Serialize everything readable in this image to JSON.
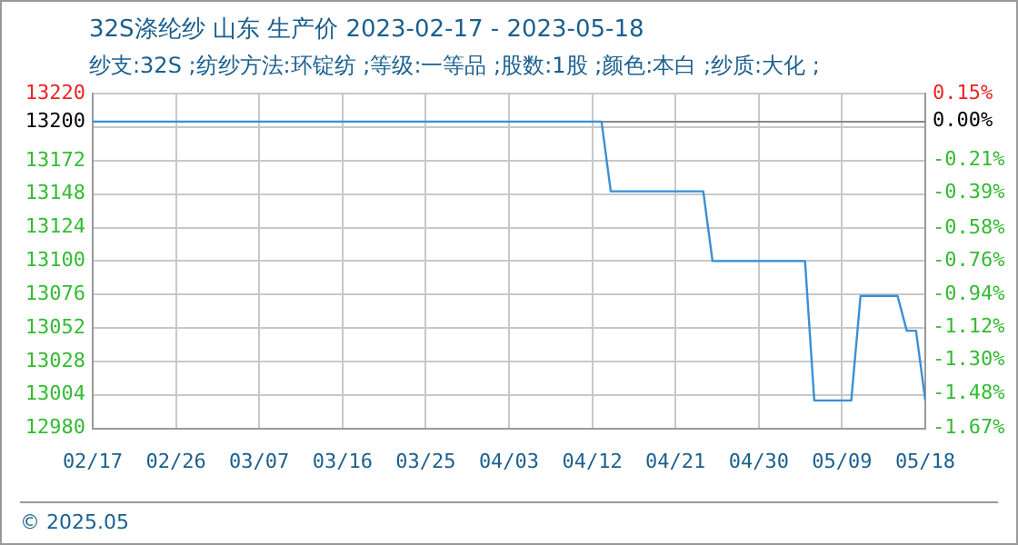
{
  "chart_data": {
    "type": "line",
    "title": "32S涤纶纱 山东 生产价 2023-02-17 - 2023-05-18",
    "subtitle": "纱支:32S ;纺纱方法:环锭纺 ;等级:一等品 ;股数:1股 ;颜色:本白 ;纱质:大化 ;",
    "x": [
      "2023-02-17",
      "2023-04-13",
      "2023-04-14",
      "2023-04-24",
      "2023-04-25",
      "2023-05-05",
      "2023-05-06",
      "2023-05-10",
      "2023-05-11",
      "2023-05-15",
      "2023-05-16",
      "2023-05-17",
      "2023-05-18"
    ],
    "series": [
      {
        "color": "#3a8fd4",
        "values": [
          13200,
          13200,
          13150,
          13150,
          13100,
          13100,
          13000,
          13000,
          13075,
          13075,
          13050,
          13050,
          13000
        ]
      }
    ],
    "xlim": [
      "2023-02-17",
      "2023-05-18"
    ],
    "xticks": [
      {
        "value": "2023-02-17",
        "label": "02/17"
      },
      {
        "value": "2023-02-26",
        "label": "02/26"
      },
      {
        "value": "2023-03-07",
        "label": "03/07"
      },
      {
        "value": "2023-03-16",
        "label": "03/16"
      },
      {
        "value": "2023-03-25",
        "label": "03/25"
      },
      {
        "value": "2023-04-03",
        "label": "04/03"
      },
      {
        "value": "2023-04-12",
        "label": "04/12"
      },
      {
        "value": "2023-04-21",
        "label": "04/21"
      },
      {
        "value": "2023-04-30",
        "label": "04/30"
      },
      {
        "value": "2023-05-09",
        "label": "05/09"
      },
      {
        "value": "2023-05-18",
        "label": "05/18"
      }
    ],
    "ylim": [
      12980,
      13220
    ],
    "yticks": [
      13220,
      {
        "value": 13196,
        "label": null
      },
      13172,
      13148,
      13124,
      13100,
      13076,
      13052,
      13028,
      13004,
      12980
    ],
    "y2lim": [
      -1.67,
      0.15
    ],
    "y2ticks": [
      {
        "value": 0.15,
        "label": "0.15%"
      },
      {
        "value": 0,
        "label": "0.00%"
      },
      {
        "value": -0.21,
        "label": "-0.21%"
      },
      {
        "value": -0.39,
        "label": "-0.39%"
      },
      {
        "value": -0.58,
        "label": "-0.58%"
      },
      {
        "value": -0.76,
        "label": "-0.76%"
      },
      {
        "value": -0.94,
        "label": "-0.94%"
      },
      {
        "value": -1.12,
        "label": "-1.12%"
      },
      {
        "value": -1.3,
        "label": "-1.30%"
      },
      {
        "value": -1.48,
        "label": "-1.48%"
      },
      {
        "value": -1.67,
        "label": "-1.67%"
      }
    ],
    "ref_lines": [
      {
        "axis": "y",
        "value": 13200,
        "label": "13200",
        "color": "#888888"
      }
    ],
    "grid": true,
    "legend": false,
    "marker": "none",
    "line_style": "solid",
    "annotations": [
      "© 2025.05"
    ]
  }
}
